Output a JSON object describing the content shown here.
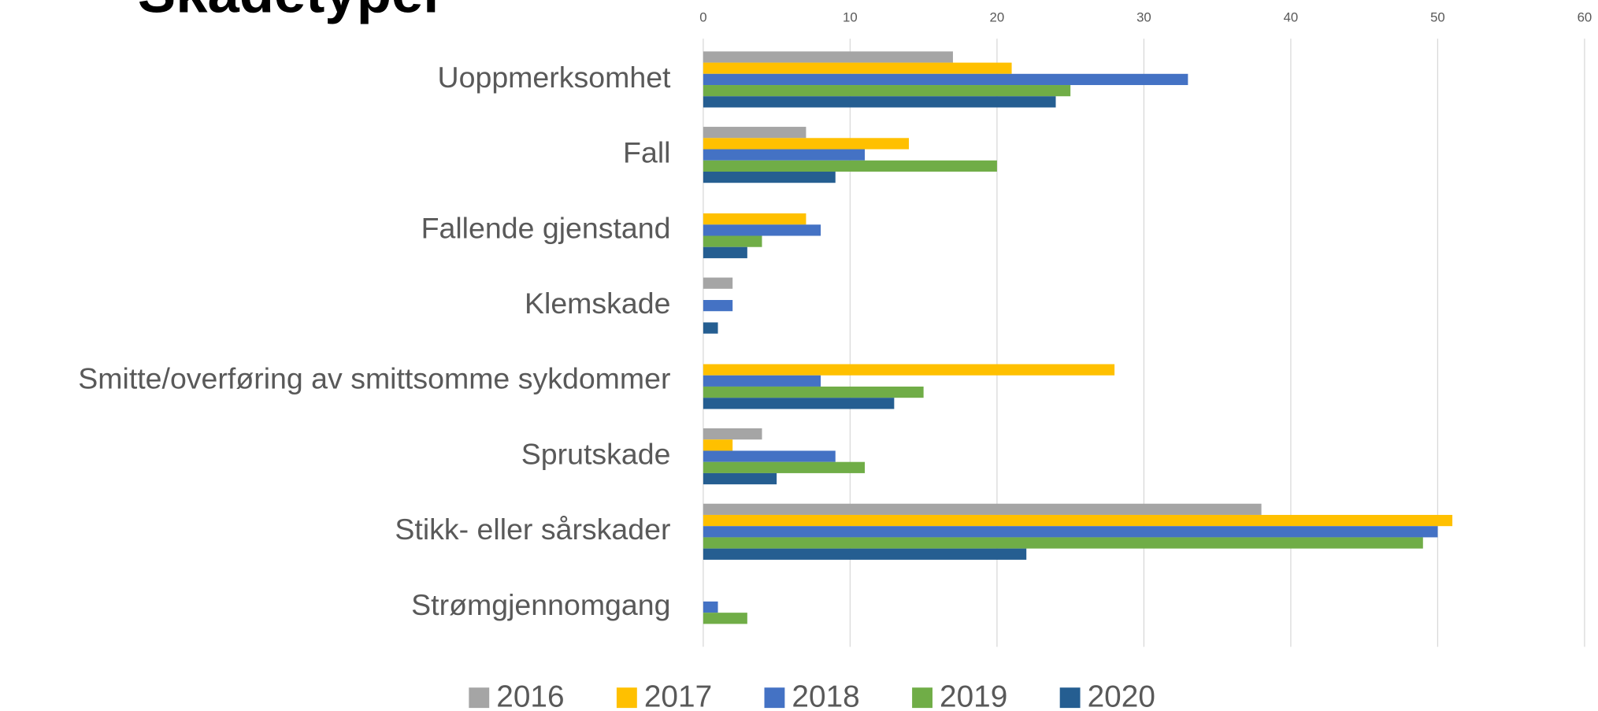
{
  "chart_data": {
    "type": "bar",
    "orientation": "horizontal",
    "title": "Skadetyper",
    "categories": [
      "Uoppmerksomhet",
      "Fall",
      "Fallende gjenstand",
      "Klemskade",
      "Smitte/overføring av smittsomme sykdommer",
      "Sprutskade",
      "Stikk- eller sårskader",
      "Strømgjennomgang"
    ],
    "series": [
      {
        "name": "2016",
        "color": "#a5a5a5",
        "values": [
          17,
          7,
          0,
          2,
          0,
          4,
          38,
          0
        ]
      },
      {
        "name": "2017",
        "color": "#ffc000",
        "values": [
          21,
          14,
          7,
          0,
          28,
          2,
          51,
          0
        ]
      },
      {
        "name": "2018",
        "color": "#4472c4",
        "values": [
          33,
          11,
          8,
          2,
          8,
          9,
          50,
          1
        ]
      },
      {
        "name": "2019",
        "color": "#70ad47",
        "values": [
          25,
          20,
          4,
          0,
          15,
          11,
          49,
          3
        ]
      },
      {
        "name": "2020",
        "color": "#255e91",
        "values": [
          24,
          9,
          3,
          1,
          13,
          5,
          22,
          0
        ]
      }
    ],
    "xlim": [
      0,
      60
    ],
    "xticks": [
      0,
      10,
      20,
      30,
      40,
      50,
      60
    ],
    "grid": true,
    "legend": "bottom"
  }
}
